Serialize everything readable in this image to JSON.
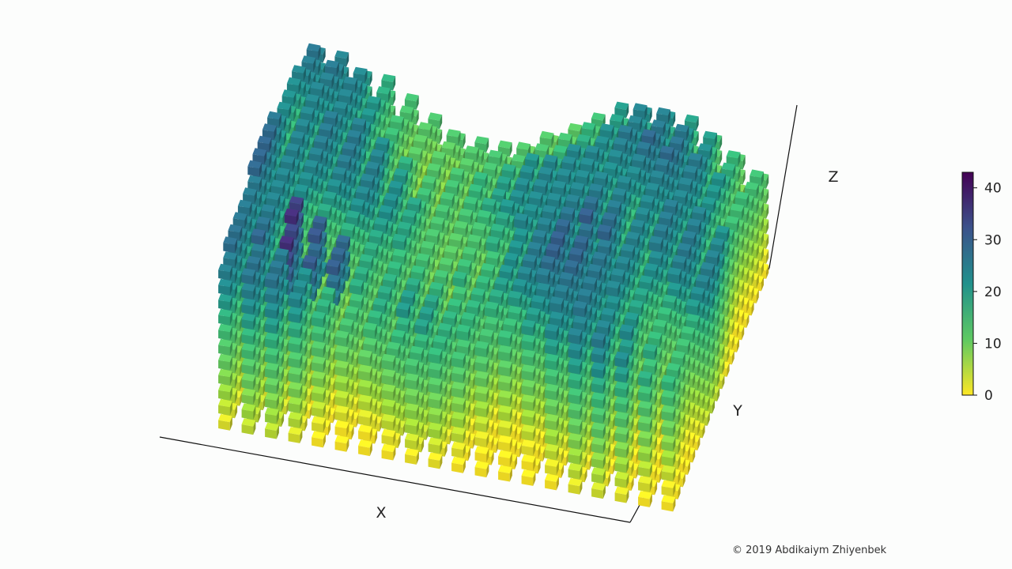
{
  "chart_data": {
    "type": "scatter",
    "dimensions": 3,
    "marker": "cube",
    "colormap": "viridis_r",
    "xlabel": "X",
    "ylabel": "Y",
    "zlabel": "Z",
    "grid": false,
    "colorbar": {
      "ticks": [
        "0",
        "10",
        "20",
        "30",
        "40"
      ],
      "range": [
        0,
        43
      ],
      "placement": "right"
    },
    "colors": {
      "low": "#fde725",
      "mid": "#21918c",
      "high": "#440154"
    },
    "notes": "Stacked columns of cube markers on a 20 x 20 grid; column height varies as a wavy surface; marker color encodes value (0 to about 43)."
  },
  "credit": "© 2019 Abdikaiym Zhiyenbek"
}
